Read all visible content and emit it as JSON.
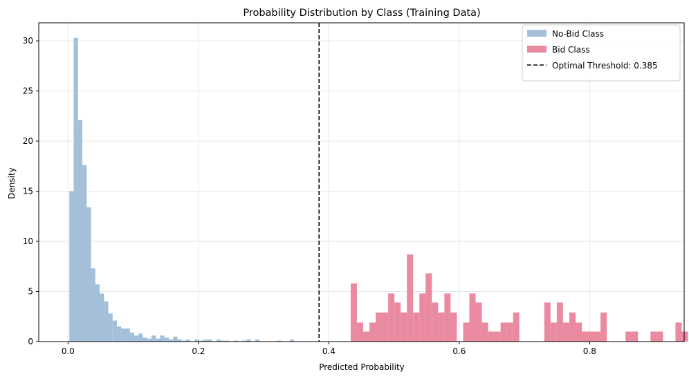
{
  "chart_data": {
    "type": "histogram",
    "title": "Probability Distribution by Class (Training Data)",
    "xlabel": "Predicted Probability",
    "ylabel": "Density",
    "xlim": [
      -0.045,
      0.945
    ],
    "ylim": [
      0,
      31.8
    ],
    "x_ticks": [
      0.0,
      0.2,
      0.4,
      0.6,
      0.8
    ],
    "x_tick_labels": [
      "0.0",
      "0.2",
      "0.4",
      "0.6",
      "0.8"
    ],
    "y_ticks": [
      0,
      5,
      10,
      15,
      20,
      25,
      30
    ],
    "y_tick_labels": [
      "0",
      "5",
      "10",
      "15",
      "20",
      "25",
      "30"
    ],
    "grid": true,
    "legend_position": "upper right",
    "colors": {
      "no_bid": "#a3bfd9",
      "bid": "#e98aa0",
      "threshold": "#000000"
    },
    "series": [
      {
        "name": "No-Bid Class",
        "bin_start": 0.002,
        "bin_width": 0.00663,
        "values": [
          15.0,
          30.3,
          22.1,
          17.6,
          13.4,
          7.3,
          5.7,
          4.8,
          4.0,
          2.8,
          2.1,
          1.5,
          1.3,
          1.3,
          0.9,
          0.6,
          0.8,
          0.4,
          0.3,
          0.6,
          0.3,
          0.6,
          0.4,
          0.2,
          0.5,
          0.2,
          0.1,
          0.2,
          0.0,
          0.2,
          0.1,
          0.2,
          0.2,
          0.0,
          0.2,
          0.1,
          0.1,
          0.0,
          0.1,
          0.0,
          0.1,
          0.2,
          0.0,
          0.2,
          0.0,
          0.0,
          0.0,
          0.0,
          0.1,
          0.0,
          0.0,
          0.2
        ]
      },
      {
        "name": "Bid Class",
        "bin_start": 0.4335,
        "bin_width": 0.00958,
        "values": [
          5.8,
          1.9,
          1.0,
          1.9,
          2.9,
          2.9,
          4.8,
          3.9,
          2.9,
          8.7,
          2.9,
          4.8,
          6.8,
          3.9,
          2.9,
          4.8,
          2.9,
          0.0,
          1.9,
          4.8,
          3.9,
          1.9,
          1.0,
          1.0,
          1.9,
          1.9,
          2.9,
          0.0,
          0.0,
          0.0,
          0.0,
          3.9,
          1.9,
          3.9,
          1.9,
          2.9,
          1.9,
          1.0,
          1.0,
          1.0,
          2.9,
          0.0,
          0.0,
          0.0,
          1.0,
          1.0,
          0.0,
          0.0,
          1.0,
          1.0,
          0.0,
          0.0,
          1.9,
          1.0,
          0.0,
          0.0,
          0.0,
          0.0,
          0.0,
          0.0,
          0.0,
          0.0,
          0.0,
          0.0,
          0.0,
          0.0,
          0.0,
          0.0,
          0.0,
          0.0
        ]
      }
    ],
    "threshold": {
      "label": "Optimal Threshold: 0.385",
      "value": 0.385
    }
  }
}
